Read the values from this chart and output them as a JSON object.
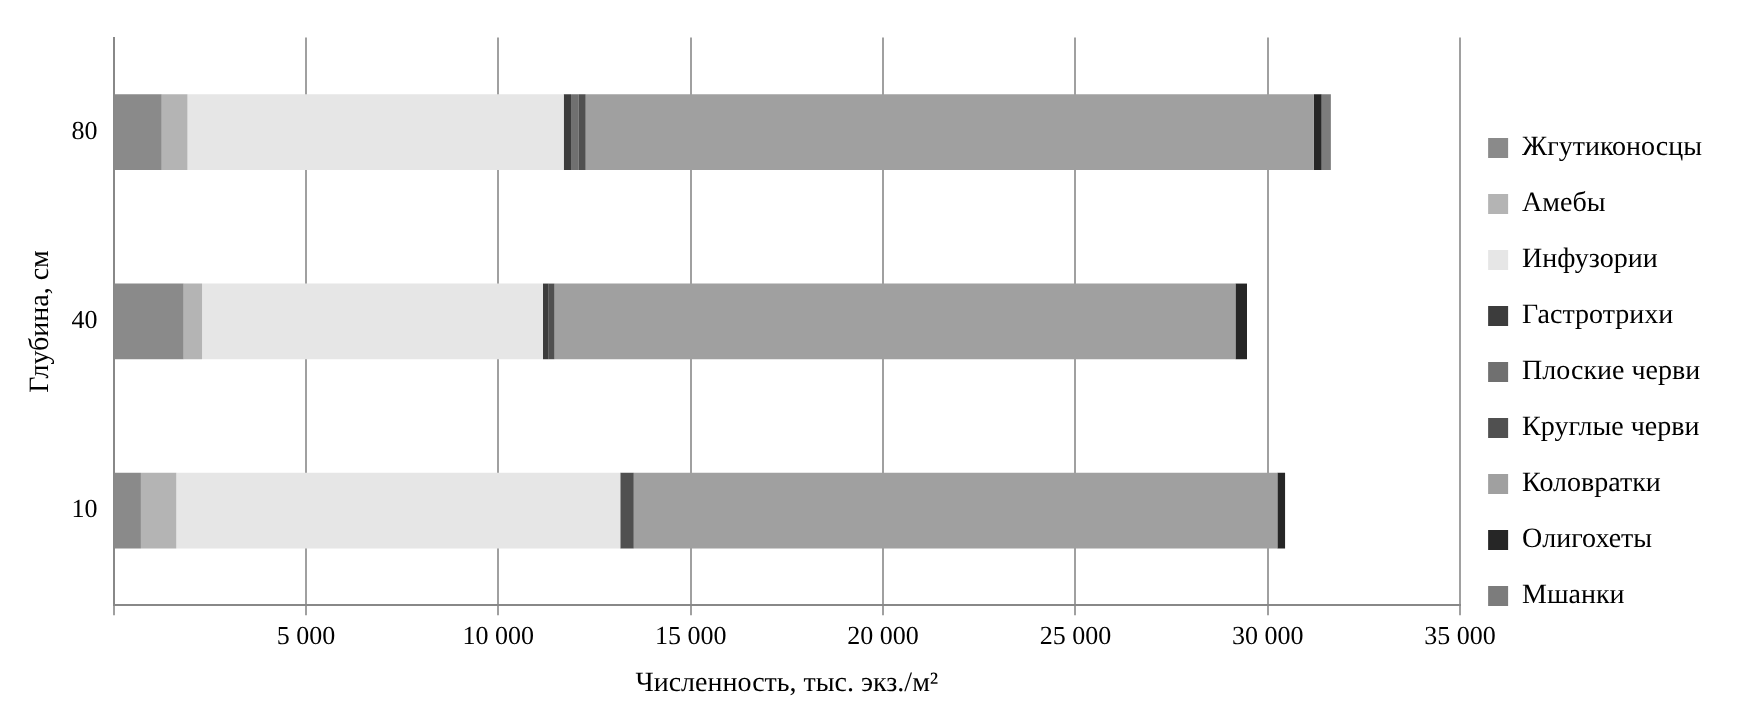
{
  "chart_data": {
    "type": "bar",
    "orientation": "horizontal",
    "stacked": true,
    "categories": [
      "80",
      "40",
      "10"
    ],
    "xlabel": "Численность, тыс. экз./м²",
    "ylabel": "Глубина, см",
    "xlim": [
      0,
      35000
    ],
    "xticks": [
      {
        "value": 0,
        "label": null
      },
      {
        "value": 5000,
        "label": "5 000"
      },
      {
        "value": 10000,
        "label": "10 000"
      },
      {
        "value": 15000,
        "label": "15 000"
      },
      {
        "value": 20000,
        "label": "20 000"
      },
      {
        "value": 25000,
        "label": "25 000"
      },
      {
        "value": 30000,
        "label": "30 000"
      },
      {
        "value": 35000,
        "label": "35 000"
      }
    ],
    "grid": "x",
    "legend": "right",
    "series": [
      {
        "name": "Жгутиконосцы",
        "color": "#8a8a8a",
        "values": [
          1250,
          1820,
          710
        ]
      },
      {
        "name": "Амебы",
        "color": "#b4b4b4",
        "values": [
          670,
          480,
          920
        ]
      },
      {
        "name": "Инфузории",
        "color": "#e6e6e6",
        "values": [
          9780,
          8860,
          11540
        ]
      },
      {
        "name": "Гастротрихи",
        "color": "#3c3c3c",
        "values": [
          190,
          150,
          0
        ]
      },
      {
        "name": "Плоские черви",
        "color": "#707070",
        "values": [
          190,
          0,
          0
        ]
      },
      {
        "name": "Круглые черви",
        "color": "#505050",
        "values": [
          190,
          150,
          350
        ]
      },
      {
        "name": "Коловратки",
        "color": "#a0a0a0",
        "values": [
          18930,
          17700,
          16730
        ]
      },
      {
        "name": "Олигохеты",
        "color": "#262626",
        "values": [
          200,
          300,
          200
        ]
      },
      {
        "name": "Мшанки",
        "color": "#7c7c7c",
        "values": [
          240,
          0,
          0
        ]
      }
    ]
  }
}
